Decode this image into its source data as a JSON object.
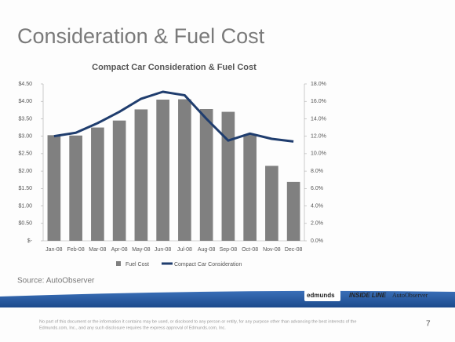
{
  "slide_title": "Consideration & Fuel Cost",
  "chart_data": {
    "type": "bar_line",
    "title": "Compact Car Consideration & Fuel Cost",
    "categories": [
      "Jan-08",
      "Feb-08",
      "Mar-08",
      "Apr-08",
      "May-08",
      "Jun-08",
      "Jul-08",
      "Aug-08",
      "Sep-08",
      "Oct-08",
      "Nov-08",
      "Dec-08"
    ],
    "series": [
      {
        "name": "Fuel Cost",
        "type": "bar",
        "color": "#808080",
        "values": [
          3.03,
          3.02,
          3.25,
          3.45,
          3.77,
          4.05,
          4.06,
          3.78,
          3.7,
          3.05,
          2.15,
          1.69
        ]
      },
      {
        "name": "Compact Car Consideration",
        "type": "line",
        "axis": "y2",
        "color": "#1f3d6e",
        "values": [
          12.0,
          12.4,
          13.5,
          14.8,
          16.3,
          17.1,
          16.7,
          14.0,
          11.5,
          12.3,
          11.7,
          11.4
        ]
      }
    ],
    "ylim": [
      0,
      4.5
    ],
    "yticks": [
      {
        "value": 0,
        "label": "$-"
      },
      {
        "value": 0.5,
        "label": "$0.50"
      },
      {
        "value": 1,
        "label": "$1.00"
      },
      {
        "value": 1.5,
        "label": "$1.50"
      },
      {
        "value": 2,
        "label": "$2.00"
      },
      {
        "value": 2.5,
        "label": "$2.50"
      },
      {
        "value": 3,
        "label": "$3.00"
      },
      {
        "value": 3.5,
        "label": "$3.50"
      },
      {
        "value": 4,
        "label": "$4.00"
      },
      {
        "value": 4.5,
        "label": "$4.50"
      }
    ],
    "y2lim": [
      0,
      18
    ],
    "y2ticks": [
      {
        "value": 0,
        "label": "0.0%"
      },
      {
        "value": 2,
        "label": "2.0%"
      },
      {
        "value": 4,
        "label": "4.0%"
      },
      {
        "value": 6,
        "label": "6.0%"
      },
      {
        "value": 8,
        "label": "8.0%"
      },
      {
        "value": 10,
        "label": "10.0%"
      },
      {
        "value": 12,
        "label": "12.0%"
      },
      {
        "value": 14,
        "label": "14.0%"
      },
      {
        "value": 16,
        "label": "16.0%"
      },
      {
        "value": 18,
        "label": "18.0%"
      }
    ],
    "legend": "bottom"
  },
  "source": "Source: AutoObserver",
  "logos": [
    "edmunds",
    "INSIDE LINE",
    "AutoObserver"
  ],
  "footer": [
    "No part of this document or the information it contains may be used, or disclosed to any person or entity, for any purpose other than advancing the best interests of the",
    "Edmunds.com, Inc., and any such disclosure requires the express approval of Edmunds.com, Inc."
  ],
  "page_number": "7"
}
